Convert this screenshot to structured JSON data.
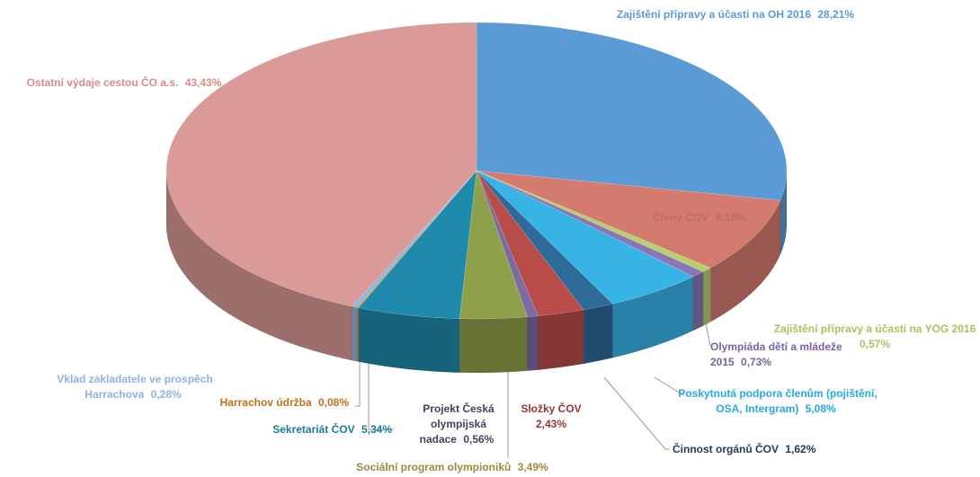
{
  "chart_data": {
    "type": "pie3d",
    "categories": [
      "Zajištění přípravy a účasti na OH 2016",
      "Členy ČOV",
      "Zajištění přípravy a účasti na YOG 2016",
      "Olympiáda dětí a mládeže 2015",
      "Poskytnutá podpora členům (pojištění, OSA, Intergram)",
      "Činnost orgánů ČOV",
      "Složky ČOV",
      "Projekt Česká olympijská nadace",
      "Sociální program olympioniků",
      "Sekretariát ČOV",
      "Harrachov údržba",
      "Vklad zakladatele ve prospěch Harrachova",
      "Ostatní výdaje cestou ČO a.s."
    ],
    "values": [
      28.21,
      8.18,
      0.57,
      0.73,
      5.08,
      1.62,
      2.43,
      0.56,
      3.49,
      5.34,
      0.08,
      0.28,
      43.43
    ],
    "value_labels": [
      "28,21%",
      "8,18%",
      "0,57%",
      "0,73%",
      "5,08%",
      "1,62%",
      "2,43%",
      "0,56%",
      "3,49%",
      "5,34%",
      "0,08%",
      "0,28%",
      "43,43%"
    ],
    "colors": [
      "#5b9bd5",
      "#d47a6e",
      "#b6cf6f",
      "#8a75b5",
      "#37b3e6",
      "#2e6a9a",
      "#b84c48",
      "#7e6aa3",
      "#8fa04a",
      "#1f8aab",
      "#e08a2c",
      "#93b8e0",
      "#d99a98"
    ]
  }
}
